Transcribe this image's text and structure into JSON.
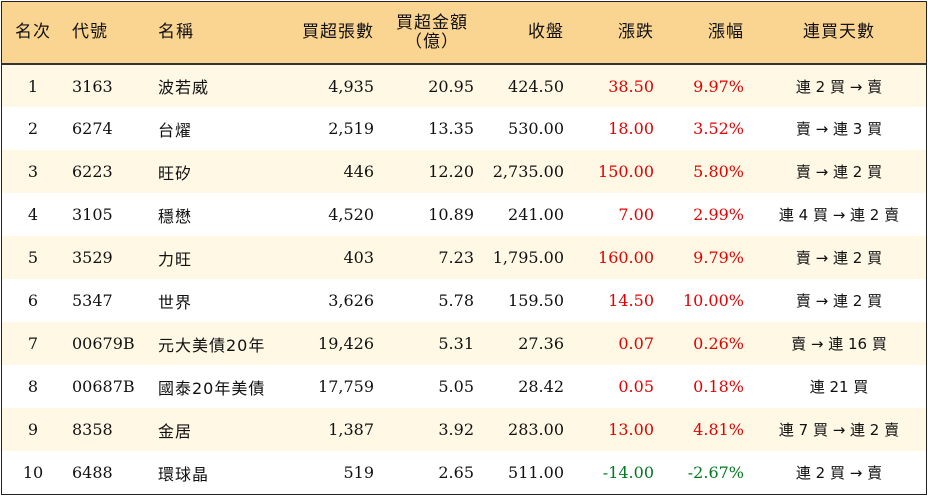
{
  "headers": {
    "rank": "名次",
    "code": "代號",
    "name": "名稱",
    "net_buy_lots": "買超張數",
    "net_buy_amount_line1": "買超金額",
    "net_buy_amount_line2": "（億）",
    "close": "收盤",
    "change": "漲跌",
    "change_pct": "漲幅",
    "streak": "連買天數"
  },
  "colors": {
    "header_bg": "#fad491",
    "row_alt_bg": "#fff8e5",
    "up": "#e50000",
    "down": "#007a1f"
  },
  "rows": [
    {
      "rank": "1",
      "code": "3163",
      "name": "波若威",
      "lots": "4,935",
      "amount": "20.95",
      "close": "424.50",
      "change": "38.50",
      "pct": "9.97%",
      "streak": "連 2 買 → 賣",
      "trend": "up"
    },
    {
      "rank": "2",
      "code": "6274",
      "name": "台燿",
      "lots": "2,519",
      "amount": "13.35",
      "close": "530.00",
      "change": "18.00",
      "pct": "3.52%",
      "streak": "賣 → 連 3 買",
      "trend": "up"
    },
    {
      "rank": "3",
      "code": "6223",
      "name": "旺矽",
      "lots": "446",
      "amount": "12.20",
      "close": "2,735.00",
      "change": "150.00",
      "pct": "5.80%",
      "streak": "賣 → 連 2 買",
      "trend": "up"
    },
    {
      "rank": "4",
      "code": "3105",
      "name": "穩懋",
      "lots": "4,520",
      "amount": "10.89",
      "close": "241.00",
      "change": "7.00",
      "pct": "2.99%",
      "streak": "連 4 買 → 連 2 賣",
      "trend": "up"
    },
    {
      "rank": "5",
      "code": "3529",
      "name": "力旺",
      "lots": "403",
      "amount": "7.23",
      "close": "1,795.00",
      "change": "160.00",
      "pct": "9.79%",
      "streak": "賣 → 連 2 買",
      "trend": "up"
    },
    {
      "rank": "6",
      "code": "5347",
      "name": "世界",
      "lots": "3,626",
      "amount": "5.78",
      "close": "159.50",
      "change": "14.50",
      "pct": "10.00%",
      "streak": "賣 → 連 2 買",
      "trend": "up"
    },
    {
      "rank": "7",
      "code": "00679B",
      "name": "元大美債20年",
      "lots": "19,426",
      "amount": "5.31",
      "close": "27.36",
      "change": "0.07",
      "pct": "0.26%",
      "streak": "賣 → 連 16 買",
      "trend": "up"
    },
    {
      "rank": "8",
      "code": "00687B",
      "name": "國泰20年美債",
      "lots": "17,759",
      "amount": "5.05",
      "close": "28.42",
      "change": "0.05",
      "pct": "0.18%",
      "streak": "連 21 買",
      "trend": "up"
    },
    {
      "rank": "9",
      "code": "8358",
      "name": "金居",
      "lots": "1,387",
      "amount": "3.92",
      "close": "283.00",
      "change": "13.00",
      "pct": "4.81%",
      "streak": "連 7 買 → 連 2 賣",
      "trend": "up"
    },
    {
      "rank": "10",
      "code": "6488",
      "name": "環球晶",
      "lots": "519",
      "amount": "2.65",
      "close": "511.00",
      "change": "-14.00",
      "pct": "-2.67%",
      "streak": "連 2 買 → 賣",
      "trend": "down"
    }
  ]
}
